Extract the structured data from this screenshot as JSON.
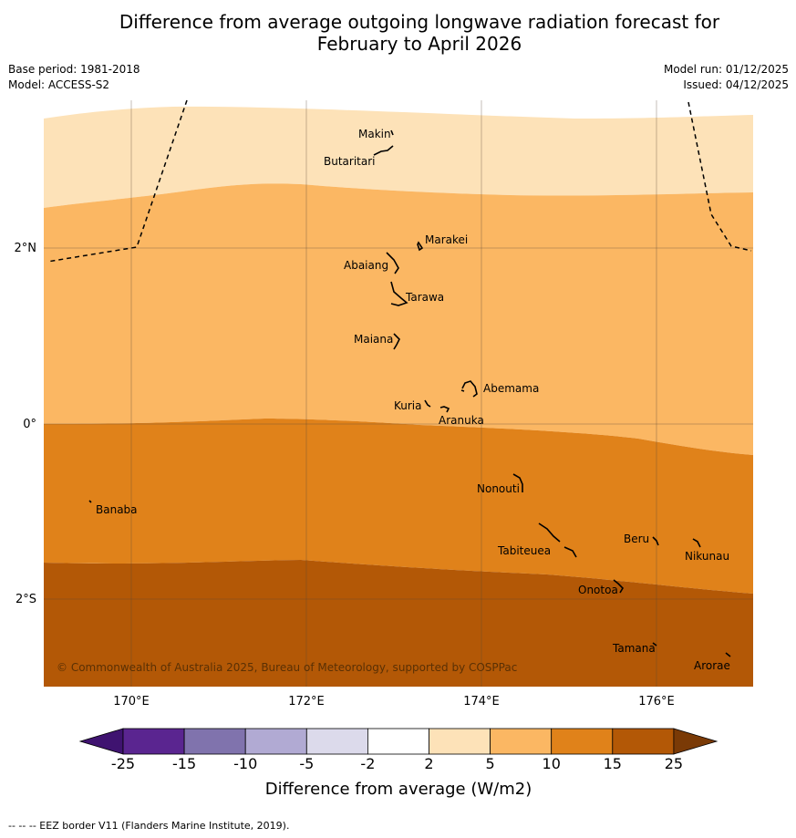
{
  "title": {
    "line1": "Difference from average outgoing longwave radiation forecast for",
    "line2": "February to April 2026"
  },
  "meta": {
    "base_period": "Base period: 1981-2018",
    "model": "Model: ACCESS-S2",
    "model_run": "Model run: 01/12/2025",
    "issued": "Issued: 04/12/2025"
  },
  "map": {
    "lat_labels": [
      "2°N",
      "0°",
      "2°S"
    ],
    "lon_labels": [
      "170°E",
      "172°E",
      "174°E",
      "176°E"
    ],
    "islands": [
      "Makin",
      "Butaritari",
      "Marakei",
      "Abaiang",
      "Tarawa",
      "Maiana",
      "Abemama",
      "Kuria",
      "Aranuka",
      "Nonouti",
      "Banaba",
      "Beru",
      "Nikunau",
      "Tabiteuea",
      "Onotoa",
      "Tamana",
      "Arorae"
    ],
    "copyright": "© Commonwealth of Australia 2025, Bureau of Meteorology, supported by COSPPac"
  },
  "colorbar": {
    "ticks": [
      "-25",
      "-15",
      "-10",
      "-5",
      "-2",
      "2",
      "5",
      "10",
      "15",
      "25"
    ],
    "colors": [
      "#3f1370",
      "#5a2590",
      "#8073ad",
      "#b1aad3",
      "#dcdaeb",
      "#ffffff",
      "#fde2b8",
      "#fbb763",
      "#e0821a",
      "#b35806",
      "#7a3a06"
    ],
    "label": "Difference from average (W/m2)"
  },
  "footer": "--  --  -- EEZ border V11 (Flanders Marine Institute, 2019)."
}
